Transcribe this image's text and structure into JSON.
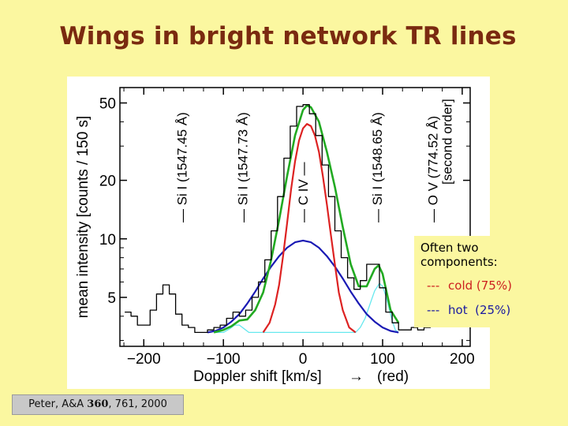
{
  "slide": {
    "title": "Wings in bright network TR lines",
    "citation": {
      "prefix": "Peter, A&A ",
      "volume": "360",
      "suffix": ", 761, 2000"
    }
  },
  "note": {
    "heading": "Often two components:",
    "cold": {
      "dash": "---",
      "label": "cold (75%)"
    },
    "hot": {
      "dash": "---",
      "label": "hot  (25%)"
    }
  },
  "chart_data": {
    "type": "line",
    "xlabel": "Doppler shift  [km/s]",
    "xlabel_arrow": "→",
    "xlabel_suffix": "(red)",
    "ylabel": "mean intensity  [counts / 150 s]",
    "xlim": [
      -230,
      210
    ],
    "ylim": [
      2.8,
      60
    ],
    "y_scale": "log",
    "x_ticks": [
      -200,
      -100,
      0,
      100,
      200
    ],
    "y_ticks": [
      5,
      10,
      20,
      50
    ],
    "grid": false,
    "colors": {
      "observed": "#000000",
      "fit": "#22aa22",
      "cold": "#dd2222",
      "hot": "#1a1ab4",
      "blend": "#66e8ee"
    },
    "line_markers": [
      {
        "x": -152,
        "label": "— Si I (1547.45 Å)"
      },
      {
        "x": -76,
        "label": "— Si I (1547.73 Å)"
      },
      {
        "x": 0,
        "label": "— C IV —"
      },
      {
        "x": 93,
        "label": "— Si I (1548.65 Å)"
      },
      {
        "x": 163,
        "label": "— O V (774.52 Å)",
        "label2": "[second order]"
      }
    ],
    "series": [
      {
        "role": "observed",
        "style": "step",
        "x": [
          -220,
          -212,
          -204,
          -196,
          -188,
          -180,
          -172,
          -164,
          -156,
          -148,
          -140,
          -132,
          -124,
          -116,
          -108,
          -100,
          -92,
          -84,
          -76,
          -68,
          -60,
          -52,
          -44,
          -36,
          -28,
          -20,
          -12,
          -4,
          4,
          12,
          20,
          28,
          36,
          44,
          52,
          60,
          68,
          76,
          84,
          92,
          100,
          108,
          116,
          124,
          132,
          140,
          148,
          156,
          164,
          172,
          180,
          188,
          196,
          204
        ],
        "y": [
          4.2,
          4.0,
          3.6,
          3.6,
          4.3,
          5.2,
          5.8,
          5.2,
          4.1,
          3.6,
          3.5,
          3.3,
          3.3,
          3.4,
          3.5,
          3.6,
          3.9,
          4.2,
          4.0,
          4.3,
          5.0,
          6.0,
          7.8,
          11.0,
          16.5,
          26.0,
          38.0,
          48.0,
          49.0,
          44.0,
          34.0,
          24.0,
          16.5,
          11.0,
          8.0,
          6.3,
          5.5,
          6.1,
          7.4,
          7.4,
          5.6,
          4.2,
          3.7,
          3.4,
          3.4,
          3.5,
          3.4,
          3.5,
          3.7,
          3.6,
          3.8,
          4.3,
          4.2,
          4.4
        ]
      },
      {
        "role": "fit",
        "x": [
          -112,
          -100,
          -90,
          -80,
          -70,
          -60,
          -50,
          -40,
          -30,
          -20,
          -10,
          0,
          5,
          10,
          20,
          30,
          40,
          50,
          60,
          70,
          80,
          90,
          95,
          100,
          110,
          120
        ],
        "y": [
          3.3,
          3.4,
          3.55,
          3.8,
          3.85,
          4.3,
          5.3,
          7.8,
          12.5,
          21.0,
          34.0,
          46.0,
          48.5,
          47.5,
          40.0,
          28.0,
          18.5,
          11.5,
          7.4,
          5.7,
          5.7,
          7.0,
          7.3,
          6.6,
          4.3,
          3.7
        ]
      },
      {
        "role": "cold",
        "x": [
          -50,
          -42,
          -35,
          -30,
          -25,
          -20,
          -15,
          -10,
          -5,
          0,
          5,
          10,
          15,
          20,
          25,
          30,
          35,
          40,
          45,
          50,
          58,
          66
        ],
        "y": [
          3.3,
          3.7,
          4.6,
          5.8,
          8.2,
          12.0,
          18.0,
          25.0,
          32.0,
          37.0,
          39.0,
          38.0,
          34.0,
          28.0,
          21.0,
          15.0,
          10.5,
          7.4,
          5.3,
          4.3,
          3.5,
          3.3
        ],
        "name": "cold (75%)"
      },
      {
        "role": "hot",
        "x": [
          -120,
          -110,
          -100,
          -90,
          -80,
          -70,
          -60,
          -50,
          -40,
          -30,
          -20,
          -10,
          0,
          10,
          20,
          30,
          40,
          50,
          60,
          70,
          80,
          90,
          100,
          110,
          120
        ],
        "y": [
          3.3,
          3.36,
          3.5,
          3.75,
          4.1,
          4.65,
          5.35,
          6.25,
          7.2,
          8.15,
          9.0,
          9.6,
          9.8,
          9.6,
          9.0,
          8.15,
          7.2,
          6.25,
          5.35,
          4.65,
          4.1,
          3.75,
          3.5,
          3.36,
          3.3
        ],
        "name": "hot (25%)"
      },
      {
        "role": "blend",
        "x": [
          -112,
          -100,
          -92,
          -86,
          -80,
          -74,
          -68,
          -60,
          -50,
          -20,
          10,
          40,
          66,
          72,
          78,
          84,
          90,
          96,
          100,
          104,
          108,
          112,
          116,
          120
        ],
        "y": [
          3.3,
          3.3,
          3.45,
          3.6,
          3.6,
          3.45,
          3.3,
          3.3,
          3.3,
          3.3,
          3.3,
          3.3,
          3.3,
          3.5,
          3.9,
          4.6,
          5.4,
          5.9,
          5.7,
          5.1,
          4.4,
          3.8,
          3.4,
          3.3
        ]
      }
    ]
  }
}
